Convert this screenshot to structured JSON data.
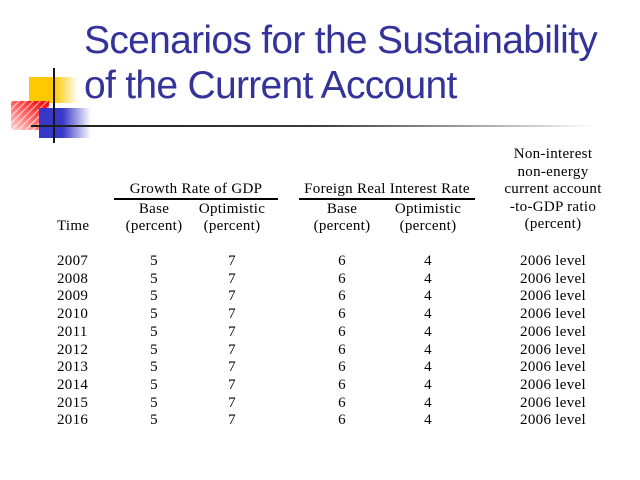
{
  "slide": {
    "title_line1": "Scenarios for the Sustainability",
    "title_line2": "of the Current Account"
  },
  "colors": {
    "title_text": "#333399",
    "accent_yellow": "#FFC800",
    "accent_red": "#FF0F0F",
    "accent_blue": "#3838C8",
    "table_text": "#000000"
  },
  "table": {
    "time_label": "Time",
    "groups": [
      {
        "label": "Growth Rate of GDP",
        "sub": [
          "Base",
          "Optimistic"
        ],
        "unit": "(percent)"
      },
      {
        "label": "Foreign Real Interest Rate",
        "sub": [
          "Base",
          "Optimistic"
        ],
        "unit": "(percent)"
      }
    ],
    "ca_header_lines": [
      "Non-interest",
      "non-energy",
      "current account",
      "-to-GDP ratio",
      "(percent)"
    ],
    "rows": [
      {
        "year": "2007",
        "gdp_base": "5",
        "gdp_opt": "7",
        "fr_base": "6",
        "fr_opt": "4",
        "ca": "2006 level"
      },
      {
        "year": "2008",
        "gdp_base": "5",
        "gdp_opt": "7",
        "fr_base": "6",
        "fr_opt": "4",
        "ca": "2006 level"
      },
      {
        "year": "2009",
        "gdp_base": "5",
        "gdp_opt": "7",
        "fr_base": "6",
        "fr_opt": "4",
        "ca": "2006 level"
      },
      {
        "year": "2010",
        "gdp_base": "5",
        "gdp_opt": "7",
        "fr_base": "6",
        "fr_opt": "4",
        "ca": "2006 level"
      },
      {
        "year": "2011",
        "gdp_base": "5",
        "gdp_opt": "7",
        "fr_base": "6",
        "fr_opt": "4",
        "ca": "2006 level"
      },
      {
        "year": "2012",
        "gdp_base": "5",
        "gdp_opt": "7",
        "fr_base": "6",
        "fr_opt": "4",
        "ca": "2006 level"
      },
      {
        "year": "2013",
        "gdp_base": "5",
        "gdp_opt": "7",
        "fr_base": "6",
        "fr_opt": "4",
        "ca": "2006 level"
      },
      {
        "year": "2014",
        "gdp_base": "5",
        "gdp_opt": "7",
        "fr_base": "6",
        "fr_opt": "4",
        "ca": "2006 level"
      },
      {
        "year": "2015",
        "gdp_base": "5",
        "gdp_opt": "7",
        "fr_base": "6",
        "fr_opt": "4",
        "ca": "2006 level"
      },
      {
        "year": "2016",
        "gdp_base": "5",
        "gdp_opt": "7",
        "fr_base": "6",
        "fr_opt": "4",
        "ca": "2006 level"
      }
    ]
  }
}
